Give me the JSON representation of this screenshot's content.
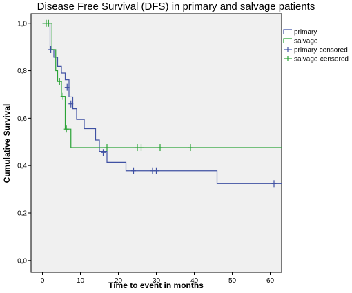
{
  "chart_data": {
    "type": "line",
    "title": "Disease Free Survival (DFS) in primary and salvage patients",
    "xlabel": "Time to event in months",
    "ylabel": "Cumulative Survival",
    "xlim": [
      -3,
      63
    ],
    "ylim": [
      -0.05,
      1.04
    ],
    "xticks": [
      0,
      10,
      20,
      30,
      40,
      50,
      60
    ],
    "yticks": [
      0.0,
      0.2,
      0.4,
      0.6,
      0.8,
      1.0
    ],
    "ytick_labels": [
      "0,0",
      "0,2",
      "0,4",
      "0,6",
      "0,8",
      "1,0"
    ],
    "xtick_labels": [
      "0",
      "10",
      "20",
      "30",
      "40",
      "50",
      "60"
    ],
    "legend_position": "top-right",
    "legend": [
      "primary",
      "salvage",
      "primary-censored",
      "salvage-censored"
    ],
    "background_color": "#f0f0f0",
    "colors": {
      "primary": "#3f51a3",
      "salvage": "#2aa336"
    },
    "series": [
      {
        "name": "primary",
        "steps": [
          [
            0,
            1.0
          ],
          [
            2,
            0.889
          ],
          [
            3,
            0.857
          ],
          [
            4,
            0.818
          ],
          [
            5,
            0.79
          ],
          [
            6,
            0.762
          ],
          [
            7,
            0.69
          ],
          [
            8,
            0.64
          ],
          [
            9,
            0.595
          ],
          [
            11,
            0.556
          ],
          [
            14,
            0.508
          ],
          [
            15,
            0.46
          ],
          [
            17,
            0.414
          ],
          [
            22,
            0.378
          ],
          [
            46,
            0.324
          ],
          [
            63,
            0.324
          ]
        ],
        "censored": [
          [
            2.2,
            0.889
          ],
          [
            6.5,
            0.73
          ],
          [
            7.5,
            0.66
          ],
          [
            16,
            0.455
          ],
          [
            24,
            0.378
          ],
          [
            29,
            0.378
          ],
          [
            30,
            0.378
          ],
          [
            61,
            0.324
          ]
        ]
      },
      {
        "name": "salvage",
        "steps": [
          [
            0,
            1.0
          ],
          [
            2.5,
            0.889
          ],
          [
            3.5,
            0.8
          ],
          [
            4,
            0.755
          ],
          [
            5,
            0.692
          ],
          [
            6,
            0.554
          ],
          [
            7.5,
            0.476
          ],
          [
            63,
            0.476
          ]
        ],
        "censored": [
          [
            1,
            1.0
          ],
          [
            1.6,
            1.0
          ],
          [
            4.5,
            0.755
          ],
          [
            5.4,
            0.692
          ],
          [
            6.3,
            0.554
          ],
          [
            17,
            0.476
          ],
          [
            25,
            0.476
          ],
          [
            26,
            0.476
          ],
          [
            31,
            0.476
          ],
          [
            39,
            0.476
          ]
        ]
      }
    ]
  }
}
